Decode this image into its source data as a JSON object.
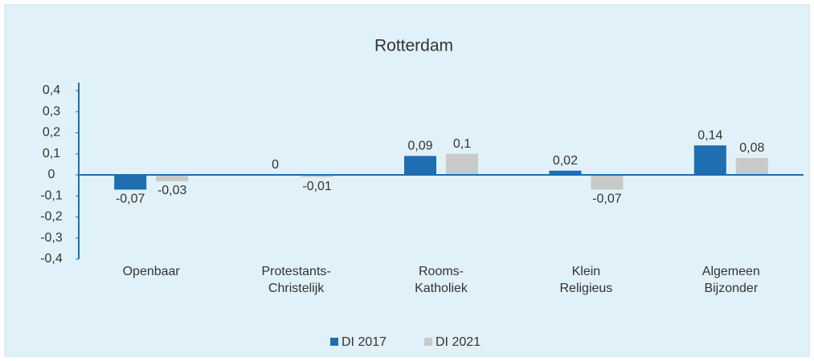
{
  "chart_data": {
    "type": "bar",
    "title": "Rotterdam",
    "categories": [
      "Openbaar",
      "Protestants-\nChristelijk",
      "Rooms-\nKatholiek",
      "Klein\nReligieus",
      "Algemeen\nBijzonder"
    ],
    "series": [
      {
        "name": "DI 2017",
        "color": "#1f6eb0",
        "values": [
          -0.07,
          0,
          0.09,
          0.02,
          0.14
        ],
        "value_labels": [
          "-0,07",
          "0",
          "0,09",
          "0,02",
          "0,14"
        ]
      },
      {
        "name": "DI 2021",
        "color": "#c9c9c9",
        "values": [
          -0.03,
          -0.01,
          0.1,
          -0.07,
          0.08
        ],
        "value_labels": [
          "-0,03",
          "-0,01",
          "0,1",
          "-0,07",
          "0,08"
        ]
      }
    ],
    "ylim": [
      -0.4,
      0.4
    ],
    "yticks": [
      {
        "value": 0.4,
        "label": "0,4"
      },
      {
        "value": 0.3,
        "label": "0,3"
      },
      {
        "value": 0.2,
        "label": "0,2"
      },
      {
        "value": 0.1,
        "label": "0,1"
      },
      0,
      {
        "value": -0.1,
        "label": "-0,1"
      },
      {
        "value": -0.2,
        "label": "-0,2"
      },
      {
        "value": -0.3,
        "label": "-0,3"
      },
      {
        "value": -0.4,
        "label": "-0,4"
      }
    ],
    "grid": false
  }
}
